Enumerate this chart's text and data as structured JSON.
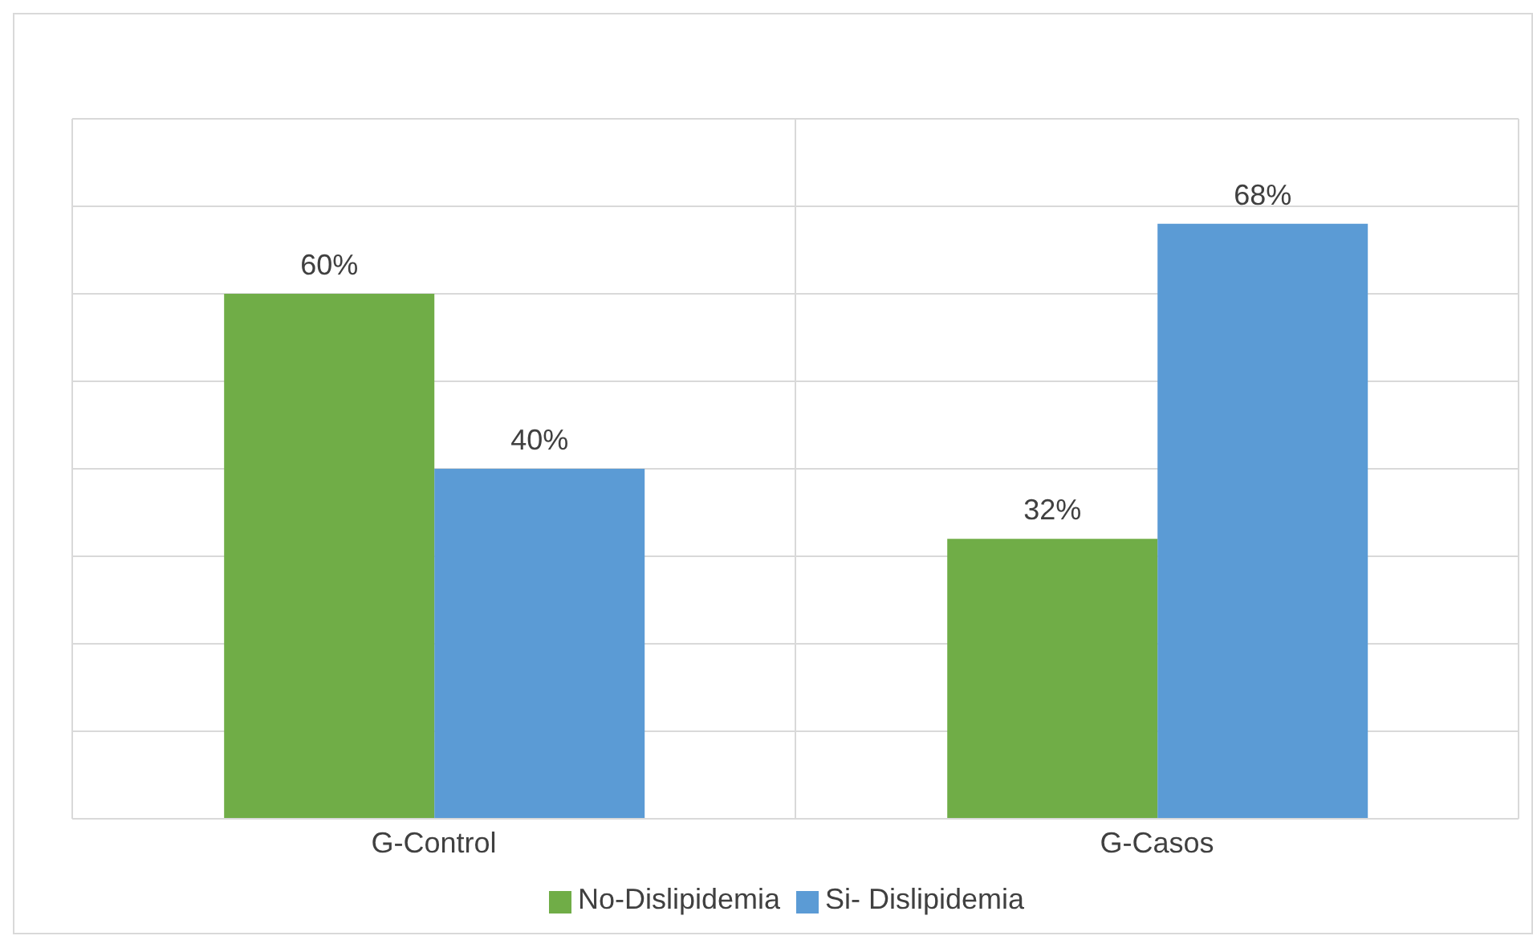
{
  "chart_data": {
    "type": "bar",
    "categories": [
      "G-Control",
      "G-Casos"
    ],
    "series": [
      {
        "name": "No-Dislipidemia",
        "color": "#70ad47",
        "values": [
          60,
          32
        ],
        "value_labels": [
          "60%",
          "32%"
        ]
      },
      {
        "name": "Si- Dislipidemia",
        "color": "#5b9bd5",
        "values": [
          40,
          68
        ],
        "value_labels": [
          "40%",
          "68%"
        ]
      }
    ],
    "ylim": [
      0,
      80
    ],
    "tick_labels": "x",
    "grid": true,
    "legend": "bottom"
  }
}
